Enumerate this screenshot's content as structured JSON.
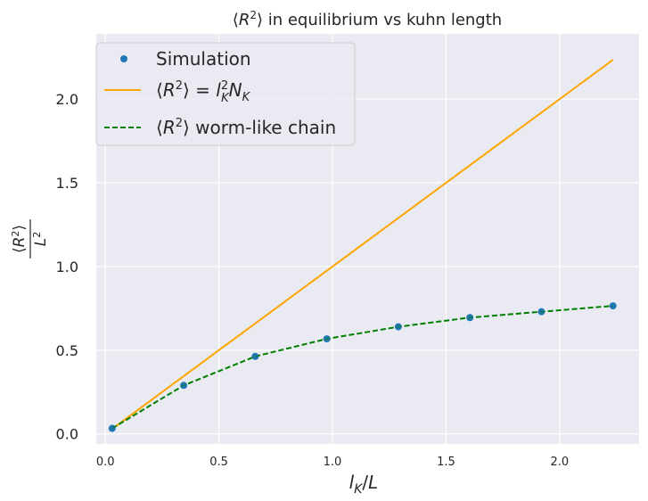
{
  "chart_data": {
    "type": "line",
    "title": "⟨R²⟩ in equilibrium vs kuhn length",
    "xlabel": "l_K / L",
    "ylabel": "⟨R²⟩ / L²",
    "xlim": [
      -0.04,
      2.35
    ],
    "ylim": [
      -0.06,
      2.39
    ],
    "xticks": [
      0.0,
      0.5,
      1.0,
      1.5,
      2.0
    ],
    "xtick_labels": [
      "0.0",
      "0.5",
      "1.0",
      "1.5",
      "2.0"
    ],
    "yticks": [
      0.0,
      0.5,
      1.0,
      1.5,
      2.0
    ],
    "ytick_labels": [
      "0.0",
      "0.5",
      "1.0",
      "1.5",
      "2.0"
    ],
    "grid": true,
    "legend_position": "upper-left",
    "series": [
      {
        "name": "Simulation",
        "style": "scatter",
        "color": "#1f77b4",
        "x": [
          0.03,
          0.345,
          0.66,
          0.975,
          1.29,
          1.605,
          1.92,
          2.235
        ],
        "y": [
          0.033,
          0.29,
          0.463,
          0.568,
          0.64,
          0.695,
          0.73,
          0.765
        ]
      },
      {
        "name": "⟨R²⟩ = l_K² N_K",
        "style": "solid",
        "color": "#ffa500",
        "x": [
          0.03,
          2.235
        ],
        "y": [
          0.03,
          2.235
        ]
      },
      {
        "name": "⟨R²⟩ worm-like chain",
        "style": "dashed",
        "color": "#008000",
        "x": [
          0.03,
          0.345,
          0.66,
          0.975,
          1.29,
          1.605,
          1.92,
          2.235
        ],
        "y": [
          0.033,
          0.29,
          0.463,
          0.568,
          0.64,
          0.695,
          0.73,
          0.765
        ]
      }
    ]
  },
  "colors": {
    "plot_background": "#eaeaf2",
    "gridline": "#ffffff",
    "text": "#262626"
  }
}
